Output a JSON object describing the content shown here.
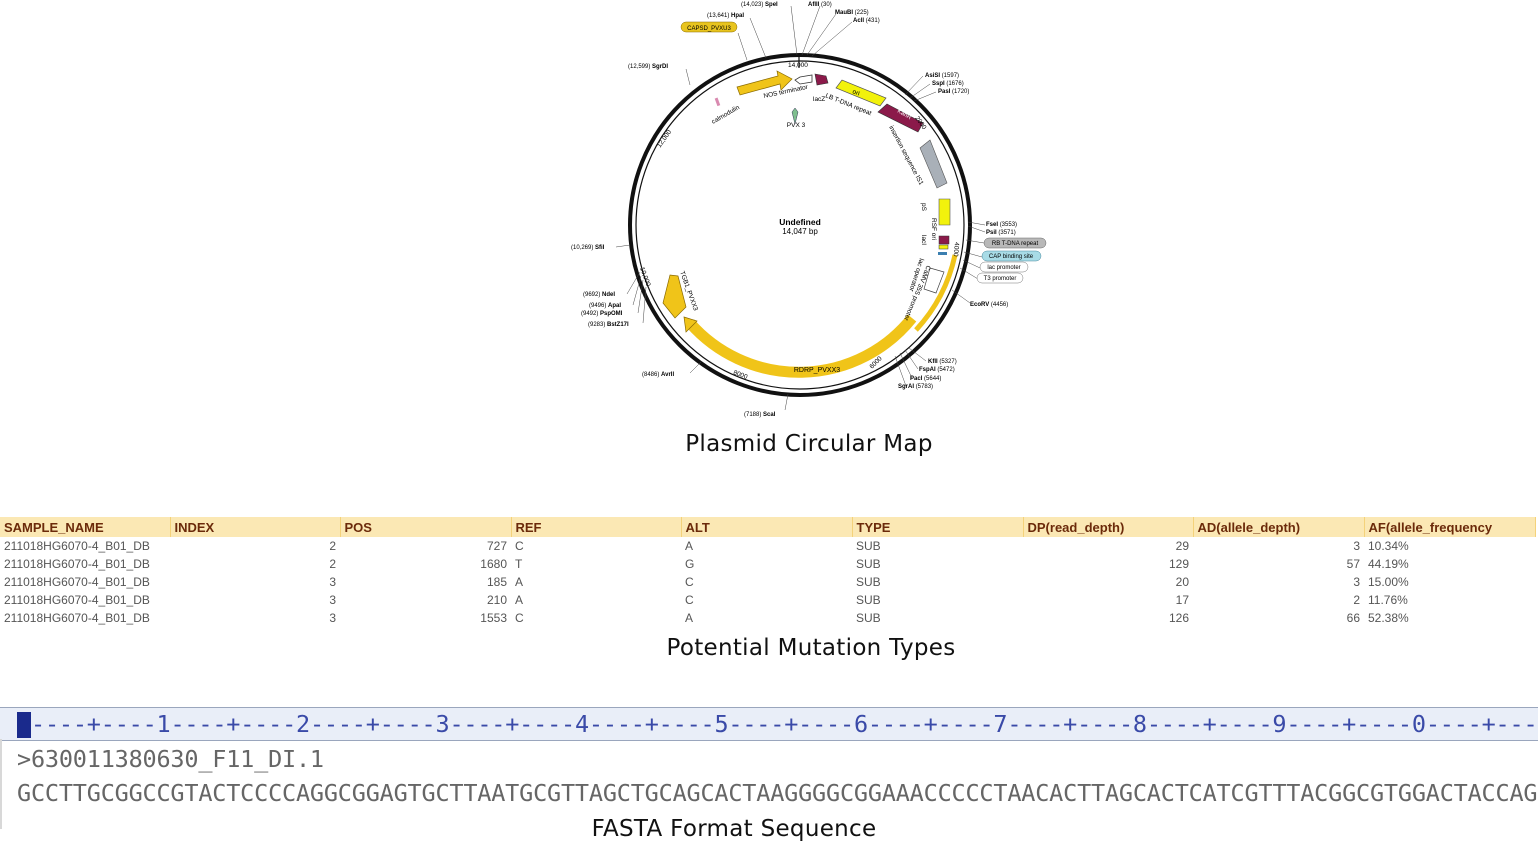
{
  "captions": {
    "map": "Plasmid Circular Map",
    "mutations": "Potential Mutation Types",
    "fasta": "FASTA Format Sequence"
  },
  "plasmid": {
    "name": "Undefined",
    "size": "14,047 bp",
    "ticks": [
      "14,000",
      "2000",
      "4000",
      "6000",
      "8000",
      "10,000",
      "12,000"
    ],
    "restriction_sites": [
      {
        "name": "SpeI",
        "pos": "(14,023)"
      },
      {
        "name": "AflII",
        "pos": "(30)"
      },
      {
        "name": "MauBI",
        "pos": "(225)"
      },
      {
        "name": "AclI",
        "pos": "(431)"
      },
      {
        "name": "HpaI",
        "pos": "(13,641)"
      },
      {
        "name": "SgrDI",
        "pos": "(12,599)"
      },
      {
        "name": "AsiSI",
        "pos": "(1597)"
      },
      {
        "name": "SspI",
        "pos": "(1676)"
      },
      {
        "name": "PasI",
        "pos": "(1720)"
      },
      {
        "name": "FseI",
        "pos": "(3553)"
      },
      {
        "name": "PsiI",
        "pos": "(3571)"
      },
      {
        "name": "EcoRV",
        "pos": "(4456)"
      },
      {
        "name": "KflI",
        "pos": "(5327)"
      },
      {
        "name": "FspAI",
        "pos": "(5472)"
      },
      {
        "name": "PacI",
        "pos": "(5644)"
      },
      {
        "name": "SgrAI",
        "pos": "(5783)"
      },
      {
        "name": "ScaI",
        "pos": "(7188)"
      },
      {
        "name": "AvrII",
        "pos": "(8486)"
      },
      {
        "name": "NdeI",
        "pos": "(9692)"
      },
      {
        "name": "ApaI",
        "pos": "(9496)"
      },
      {
        "name": "PspOMI",
        "pos": "(9492)"
      },
      {
        "name": "BstZ17I",
        "pos": "(9283)"
      },
      {
        "name": "SfiI",
        "pos": "(10,269)"
      }
    ],
    "boxed_labels": {
      "capsid": "CAPSD_PVXU3",
      "rb": "RB T-DNA repeat",
      "cap": "CAP binding site",
      "lac_promoter": "lac promoter",
      "t3": "T3 promoter"
    },
    "features": {
      "nos": "NOS terminator",
      "lacz": "lacZ",
      "lb": "LB T-DNA repeat",
      "ori": "ori",
      "kanr": "KanR",
      "insertion": "insertion sequence IS1",
      "ps": "pS",
      "rsf": "RSF ori",
      "laci": "lacI",
      "lac_operator": "lac operator",
      "camv": "CaMV 35S promoter",
      "rdrp": "RDRP_PVXX3",
      "tgb1": "TGB1_PVXX3",
      "calmodulin": "calmodulin",
      "pvx3": "PVX 3"
    },
    "colors": {
      "backbone": "#111111",
      "yellow_feature": "#f0c419",
      "bright_yellow": "#f2f20c",
      "kanr": "#8b1a4a",
      "insertion": "#a9b0b8"
    }
  },
  "mutation_table": {
    "headers": [
      "SAMPLE_NAME",
      "INDEX",
      "POS",
      "REF",
      "ALT",
      "TYPE",
      "DP(read_depth)",
      "AD(allele_depth)",
      "AF(allele_frequency"
    ],
    "rows": [
      [
        "211018HG6070-4_B01_DB",
        "2",
        "727",
        "C",
        "A",
        "SUB",
        "29",
        "3",
        "10.34%"
      ],
      [
        "211018HG6070-4_B01_DB",
        "2",
        "1680",
        "T",
        "G",
        "SUB",
        "129",
        "57",
        "44.19%"
      ],
      [
        "211018HG6070-4_B01_DB",
        "3",
        "185",
        "A",
        "C",
        "SUB",
        "20",
        "3",
        "15.00%"
      ],
      [
        "211018HG6070-4_B01_DB",
        "3",
        "210",
        "A",
        "C",
        "SUB",
        "17",
        "2",
        "11.76%"
      ],
      [
        "211018HG6070-4_B01_DB",
        "3",
        "1553",
        "C",
        "A",
        "SUB",
        "126",
        "66",
        "52.38%"
      ]
    ],
    "colors": {
      "header_bg": "#fbe8b4",
      "header_text": "#6b2a0a"
    }
  },
  "fasta": {
    "ruler": "----+----1----+----2----+----3----+----4----+----5----+----6----+----7----+----8----+----9----+----0----+----",
    "header": ">630011380630_F11_DI.1",
    "sequence": "GCCTTGCGGCCGTACTCCCCAGGCGGAGTGCTTAATGCGTTAGCTGCAGCACTAAGGGGCGGAAACCCCCTAACACTTAGCACTCATCGTTTACGGCGTGGACTACCAG"
  }
}
